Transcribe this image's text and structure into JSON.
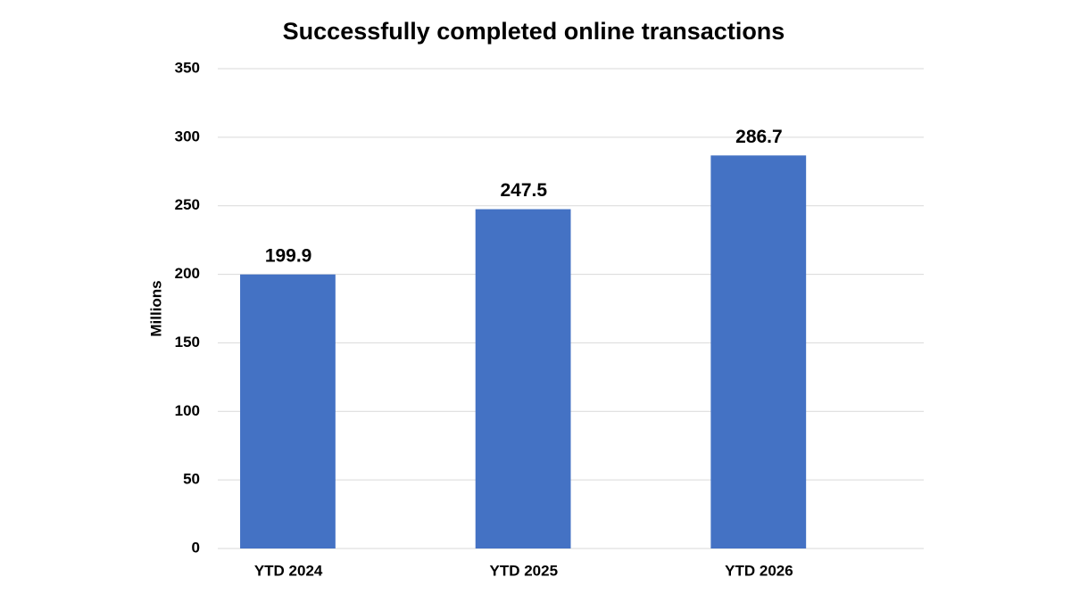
{
  "chart_data": {
    "type": "bar",
    "title": "Successfully completed online transactions",
    "y_label": "Millions",
    "categories": [
      "YTD 2024",
      "YTD 2025",
      "YTD 2026"
    ],
    "values": [
      199.9,
      247.5,
      286.7
    ],
    "color": "#4472c4",
    "ylim": [
      0,
      350
    ],
    "yticks": [
      0,
      50,
      100,
      150,
      200,
      250,
      300,
      350
    ],
    "grid": true
  }
}
